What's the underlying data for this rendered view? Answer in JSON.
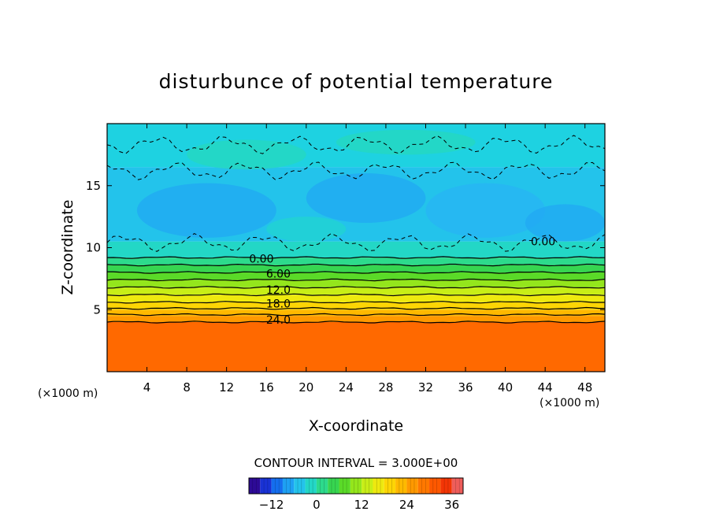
{
  "chart_data": {
    "type": "heatmap",
    "title": "disturbunce of potential temperature",
    "xlabel": "X-coordinate",
    "ylabel": "Z-coordinate",
    "x_unit_left": "(×1000 m)",
    "x_unit_right": "(×1000 m)",
    "xlim": [
      0,
      50
    ],
    "ylim": [
      0,
      20
    ],
    "x_ticks": [
      4,
      8,
      12,
      16,
      20,
      24,
      28,
      32,
      36,
      40,
      44,
      48
    ],
    "y_ticks": [
      5,
      10,
      15
    ],
    "contour_labels": [
      {
        "label": "0.00",
        "x": 15.5,
        "z": 9.1
      },
      {
        "label": "6.00",
        "x": 17.2,
        "z": 7.9
      },
      {
        "label": "12.0",
        "x": 17.2,
        "z": 6.6
      },
      {
        "label": "18.0",
        "x": 17.2,
        "z": 5.5
      },
      {
        "label": "24.0",
        "x": 17.2,
        "z": 4.2
      },
      {
        "label": "0.00",
        "x": 43.8,
        "z": 10.5
      }
    ],
    "layers": [
      {
        "z0": 0,
        "z1": 4.0,
        "value": 30
      },
      {
        "z0": 4.0,
        "z1": 4.5,
        "value": 25.5
      },
      {
        "z0": 4.5,
        "z1": 5.0,
        "value": 22.5
      },
      {
        "z0": 5.0,
        "z1": 5.6,
        "value": 19.5
      },
      {
        "z0": 5.6,
        "z1": 6.2,
        "value": 16.5
      },
      {
        "z0": 6.2,
        "z1": 6.8,
        "value": 13.5
      },
      {
        "z0": 6.8,
        "z1": 7.4,
        "value": 10.5
      },
      {
        "z0": 7.4,
        "z1": 8.0,
        "value": 7.5
      },
      {
        "z0": 8.0,
        "z1": 8.6,
        "value": 4.5
      },
      {
        "z0": 8.6,
        "z1": 9.2,
        "value": 1.5
      },
      {
        "z0": 9.2,
        "z1": 10.5,
        "value": -1.5
      },
      {
        "z0": 10.5,
        "z1": 16.5,
        "value": -4.5
      },
      {
        "z0": 16.5,
        "z1": 20,
        "value": -3
      }
    ],
    "solid_contours_z": [
      4.0,
      4.6,
      5.1,
      5.6,
      6.2,
      6.8,
      7.4,
      8.0,
      8.6,
      9.2
    ],
    "dashed_contours_z": [
      10.4,
      16.2,
      18.3
    ],
    "colorbar": {
      "min": -18,
      "max": 39,
      "step": 3,
      "ticks": [
        -12,
        0,
        12,
        24,
        36
      ],
      "tick_labels": [
        "−12",
        "0",
        "12",
        "24",
        "36"
      ]
    },
    "annotation": "CONTOUR INTERVAL = 3.000E+00",
    "grid": false,
    "legend": "bottom colorbar"
  }
}
